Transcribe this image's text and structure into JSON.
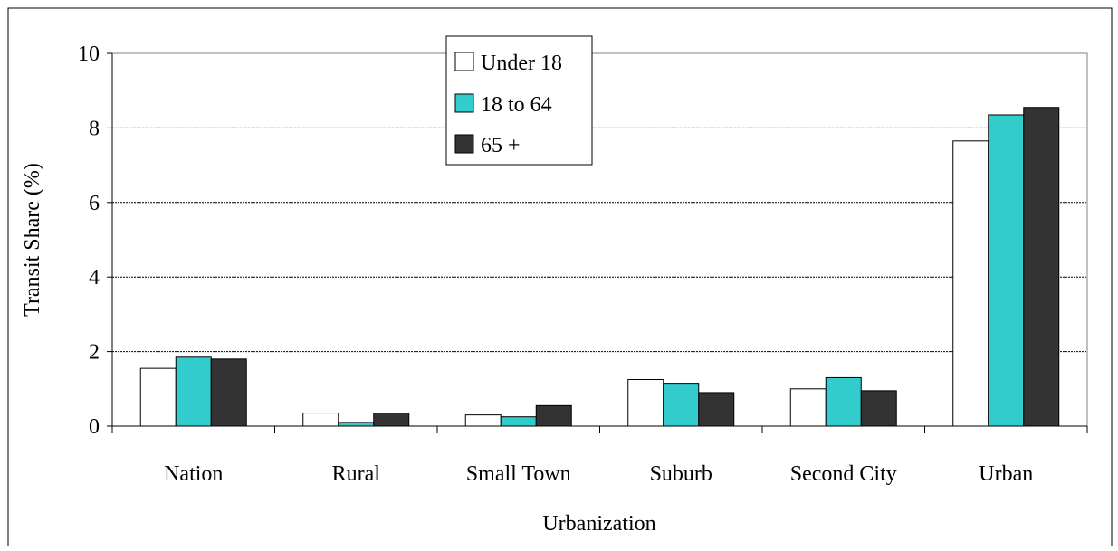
{
  "chart_data": {
    "type": "bar",
    "title": "",
    "xlabel": "Urbanization",
    "ylabel": "Transit Share (%)",
    "categories": [
      "Nation",
      "Rural",
      "Small Town",
      "Suburb",
      "Second City",
      "Urban"
    ],
    "series": [
      {
        "name": "Under 18",
        "values": [
          1.55,
          0.35,
          0.3,
          1.25,
          1.0,
          7.65
        ],
        "color": "#ffffff"
      },
      {
        "name": "18 to 64",
        "values": [
          1.85,
          0.1,
          0.25,
          1.15,
          1.3,
          8.35
        ],
        "color": "#33cccc"
      },
      {
        "name": "65 +",
        "values": [
          1.8,
          0.35,
          0.55,
          0.9,
          0.95,
          8.55
        ],
        "color": "#333333"
      }
    ],
    "ylim": [
      0,
      10
    ],
    "yticks": [
      0,
      2,
      4,
      6,
      8,
      10
    ],
    "grid": true,
    "legend_position": "top-center"
  }
}
